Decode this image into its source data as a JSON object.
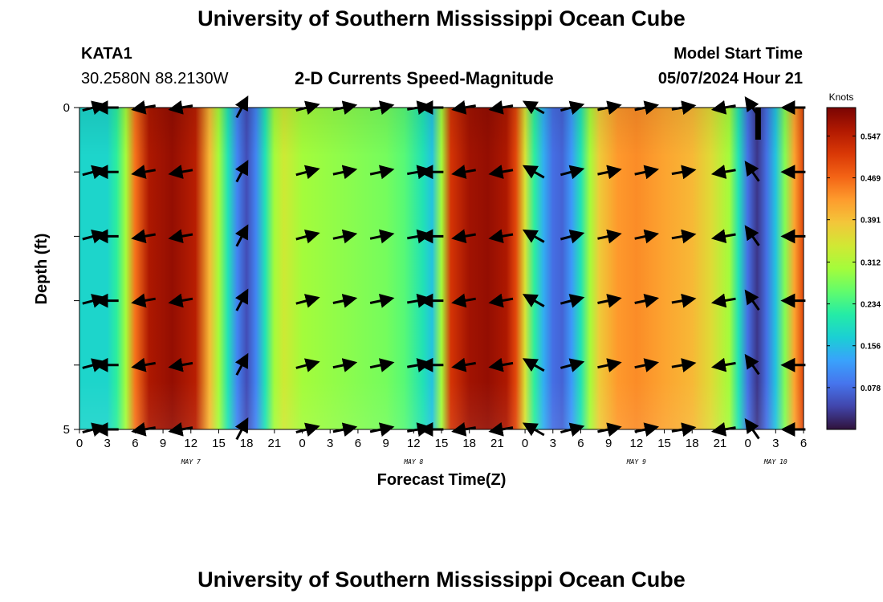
{
  "page": {
    "title": "University of Southern Mississippi Ocean Cube",
    "title_bottom": "University of Southern Mississippi Ocean Cube",
    "station_id": "KATA1",
    "station_coords": "30.2580N  88.2130W",
    "plot_title": "2-D Currents Speed-Magnitude",
    "model_start_label": "Model Start Time",
    "model_start_value": "05/07/2024 Hour 21"
  },
  "chart_data": {
    "type": "heatmap",
    "title": "2-D Currents Speed-Magnitude",
    "xlabel": "Forecast Time(Z)",
    "ylabel": "Depth (ft)",
    "x_ticks": [
      "0",
      "3",
      "6",
      "9",
      "12",
      "15",
      "18",
      "21",
      "0",
      "3",
      "6",
      "9",
      "12",
      "15",
      "18",
      "21",
      "0",
      "3",
      "6",
      "9",
      "12",
      "15",
      "18",
      "21",
      "0",
      "3",
      "6"
    ],
    "x_range_hours": [
      0,
      78
    ],
    "date_labels": [
      {
        "label": "MAY 7",
        "hour": 12
      },
      {
        "label": "MAY 8",
        "hour": 36
      },
      {
        "label": "MAY 9",
        "hour": 60
      },
      {
        "label": "MAY 10",
        "hour": 75
      }
    ],
    "y_ticks": [
      "0",
      "5"
    ],
    "y_range": [
      0,
      5
    ],
    "colorbar": {
      "label": "Knots",
      "ticks": [
        0.078,
        0.156,
        0.234,
        0.312,
        0.391,
        0.469,
        0.547
      ],
      "range": [
        0.0,
        0.6
      ],
      "colors": [
        "#30123b",
        "#4145ab",
        "#4675ed",
        "#39a2fc",
        "#1bcfd4",
        "#24eca6",
        "#61fc6c",
        "#a4fc3b",
        "#d1e834",
        "#f3c63a",
        "#fe9b2d",
        "#f36315",
        "#d93806",
        "#b11901",
        "#7a0403"
      ]
    },
    "speed_profile": {
      "hours": [
        0,
        3,
        4,
        5,
        6,
        7.5,
        10,
        12.5,
        14,
        15,
        16,
        17,
        18,
        19,
        20,
        21,
        22,
        24,
        30,
        33,
        35,
        37,
        38,
        39,
        40,
        42,
        44,
        46,
        47,
        48,
        49,
        50,
        51,
        52,
        53,
        54,
        55,
        56,
        58,
        60,
        63,
        66,
        68,
        70,
        71,
        72,
        73,
        74,
        75,
        76,
        77,
        78
      ],
      "knots": [
        0.18,
        0.18,
        0.22,
        0.3,
        0.46,
        0.56,
        0.58,
        0.55,
        0.4,
        0.3,
        0.2,
        0.1,
        0.05,
        0.1,
        0.2,
        0.3,
        0.34,
        0.3,
        0.28,
        0.27,
        0.25,
        0.2,
        0.16,
        0.3,
        0.52,
        0.57,
        0.58,
        0.56,
        0.5,
        0.35,
        0.22,
        0.14,
        0.08,
        0.07,
        0.12,
        0.2,
        0.3,
        0.38,
        0.43,
        0.44,
        0.42,
        0.4,
        0.36,
        0.3,
        0.2,
        0.08,
        0.03,
        0.08,
        0.16,
        0.28,
        0.42,
        0.5
      ],
      "depth_factor": [
        0.95,
        1.0,
        1.0,
        0.98,
        0.96,
        0.95
      ]
    },
    "vector_depths": [
      0,
      1,
      2,
      3,
      4,
      5
    ],
    "vectors": [
      {
        "hour": 1.5,
        "angle_deg": 15
      },
      {
        "hour": 3.0,
        "angle_deg": 180
      },
      {
        "hour": 7.0,
        "angle_deg": 190
      },
      {
        "hour": 11.0,
        "angle_deg": 190
      },
      {
        "hour": 17.5,
        "angle_deg": 62
      },
      {
        "hour": 24.5,
        "angle_deg": 15
      },
      {
        "hour": 28.5,
        "angle_deg": 12
      },
      {
        "hour": 32.5,
        "angle_deg": 12
      },
      {
        "hour": 36.5,
        "angle_deg": 10
      },
      {
        "hour": 38.0,
        "angle_deg": 180
      },
      {
        "hour": 41.5,
        "angle_deg": 190
      },
      {
        "hour": 45.5,
        "angle_deg": 190
      },
      {
        "hour": 49.0,
        "angle_deg": 150
      },
      {
        "hour": 53.0,
        "angle_deg": 15
      },
      {
        "hour": 57.0,
        "angle_deg": 12
      },
      {
        "hour": 61.0,
        "angle_deg": 12
      },
      {
        "hour": 65.0,
        "angle_deg": 10
      },
      {
        "hour": 69.5,
        "angle_deg": 190
      },
      {
        "hour": 72.5,
        "angle_deg": 125
      },
      {
        "hour": 77.0,
        "angle_deg": 180
      }
    ]
  }
}
